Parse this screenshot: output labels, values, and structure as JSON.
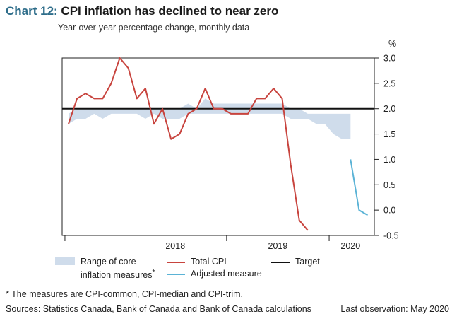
{
  "header": {
    "chart_number": "Chart 12:",
    "title": "CPI inflation has declined to near zero",
    "subtitle": "Year-over-year percentage change, monthly data"
  },
  "chart_data": {
    "type": "line",
    "y_unit_label": "%",
    "ylim": [
      -0.5,
      3.0
    ],
    "yticks": [
      "3.0",
      "2.5",
      "2.0",
      "1.5",
      "1.0",
      "0.5",
      "0.0",
      "-0.5"
    ],
    "x_labels": [
      "2018",
      "2019",
      "2020"
    ],
    "x_dates": [
      "2017-06",
      "2017-07",
      "2017-08",
      "2017-09",
      "2017-10",
      "2017-11",
      "2017-12",
      "2018-01",
      "2018-02",
      "2018-03",
      "2018-04",
      "2018-05",
      "2018-06",
      "2018-07",
      "2018-08",
      "2018-09",
      "2018-10",
      "2018-11",
      "2018-12",
      "2019-01",
      "2019-02",
      "2019-03",
      "2019-04",
      "2019-05",
      "2019-06",
      "2019-07",
      "2019-08",
      "2019-09",
      "2019-10",
      "2019-11",
      "2019-12",
      "2020-01",
      "2020-02",
      "2020-03",
      "2020-04",
      "2020-05"
    ],
    "target": 2.0,
    "series": [
      {
        "name": "Total CPI",
        "color": "#c8443e",
        "values": [
          1.7,
          2.2,
          2.3,
          2.2,
          2.2,
          2.5,
          3.0,
          2.8,
          2.2,
          2.4,
          1.7,
          2.0,
          1.4,
          1.5,
          1.9,
          2.0,
          2.4,
          2.0,
          2.0,
          1.9,
          1.9,
          1.9,
          2.2,
          2.2,
          2.4,
          2.2,
          0.9,
          -0.2,
          -0.4
        ]
      },
      {
        "name": "Adjusted measure",
        "color": "#5bb3d6",
        "values": [
          1.0,
          0.0,
          -0.1
        ]
      }
    ],
    "core_range": {
      "name": "Range of core inflation measures*",
      "color": "#cfdceb",
      "low": [
        1.7,
        1.8,
        1.8,
        1.9,
        1.8,
        1.9,
        1.9,
        1.9,
        1.9,
        1.8,
        1.9,
        1.8,
        1.8,
        1.8,
        1.9,
        1.9,
        1.9,
        1.9,
        1.9,
        1.9,
        1.9,
        1.9,
        1.9,
        1.9,
        1.9,
        1.9,
        1.8,
        1.8,
        1.8,
        1.7,
        1.7,
        1.5,
        1.4,
        1.4
      ],
      "high": [
        1.9,
        2.0,
        2.0,
        2.0,
        2.0,
        2.0,
        2.0,
        2.0,
        2.0,
        2.0,
        2.0,
        2.0,
        2.0,
        2.0,
        2.1,
        2.0,
        2.2,
        2.1,
        2.1,
        2.1,
        2.1,
        2.1,
        2.1,
        2.1,
        2.1,
        2.1,
        2.0,
        2.0,
        1.9,
        1.9,
        1.9,
        1.9,
        1.9,
        1.9
      ]
    },
    "legend": {
      "range_line1": "Range of core",
      "range_line2": "inflation measures",
      "range_marker": "*",
      "total": "Total CPI",
      "target": "Target",
      "adjusted": "Adjusted measure"
    }
  },
  "notes": {
    "footnote": "* The measures are CPI-common, CPI-median and CPI-trim.",
    "sources": "Sources: Statistics Canada, Bank of Canada and Bank of Canada calculations",
    "last_observation": "Last observation: May 2020"
  }
}
